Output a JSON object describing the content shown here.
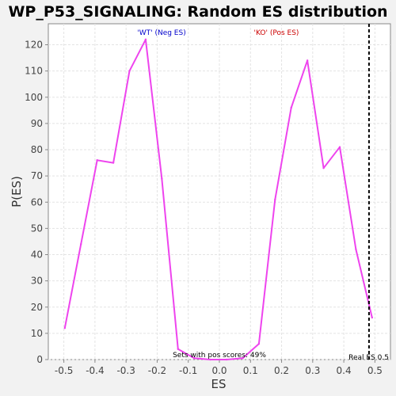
{
  "chart_data": {
    "type": "line",
    "title": "WP_P53_SIGNALING: Random ES distribution",
    "xlabel": "ES",
    "ylabel": "P(ES)",
    "xlim": [
      -0.55,
      0.55
    ],
    "ylim": [
      0,
      128
    ],
    "x_ticks": [
      -0.5,
      -0.4,
      -0.3,
      -0.2,
      -0.1,
      0.0,
      0.1,
      0.2,
      0.3,
      0.4,
      0.5
    ],
    "x_tick_labels": [
      "-0.5",
      "-0.4",
      "-0.3",
      "-0.2",
      "-0.1",
      "0.0",
      "0.1",
      "0.2",
      "0.3",
      "0.4",
      "0.5"
    ],
    "y_ticks": [
      0,
      10,
      20,
      30,
      40,
      50,
      60,
      70,
      80,
      90,
      100,
      110,
      120
    ],
    "y_tick_labels": [
      "0",
      "10",
      "20",
      "30",
      "40",
      "50",
      "60",
      "70",
      "80",
      "90",
      "100",
      "110",
      "120"
    ],
    "grid": true,
    "series": [
      {
        "color": "#ee44ee",
        "x": [
          -0.497,
          -0.445,
          -0.393,
          -0.341,
          -0.289,
          -0.237,
          -0.185,
          -0.133,
          -0.081,
          -0.029,
          0.023,
          0.075,
          0.127,
          0.179,
          0.231,
          0.283,
          0.335,
          0.387,
          0.439,
          0.491
        ],
        "y": [
          12,
          44,
          76,
          75,
          110,
          122,
          69,
          4,
          0.5,
          0,
          0,
          0.5,
          6,
          61,
          96,
          114,
          73,
          81,
          42,
          16
        ]
      }
    ],
    "vline": {
      "x": 0.481,
      "label": "Real ES 0.5",
      "style": "dashed",
      "color": "#000000"
    },
    "annotations": {
      "neg": {
        "text": "'WT' (Neg ES)",
        "color": "#0000cc"
      },
      "pos": {
        "text": "'KO' (Pos ES)",
        "color": "#cc0000"
      },
      "sets": {
        "text": "Sets with pos scores: 49%",
        "color": "#000000"
      }
    }
  }
}
